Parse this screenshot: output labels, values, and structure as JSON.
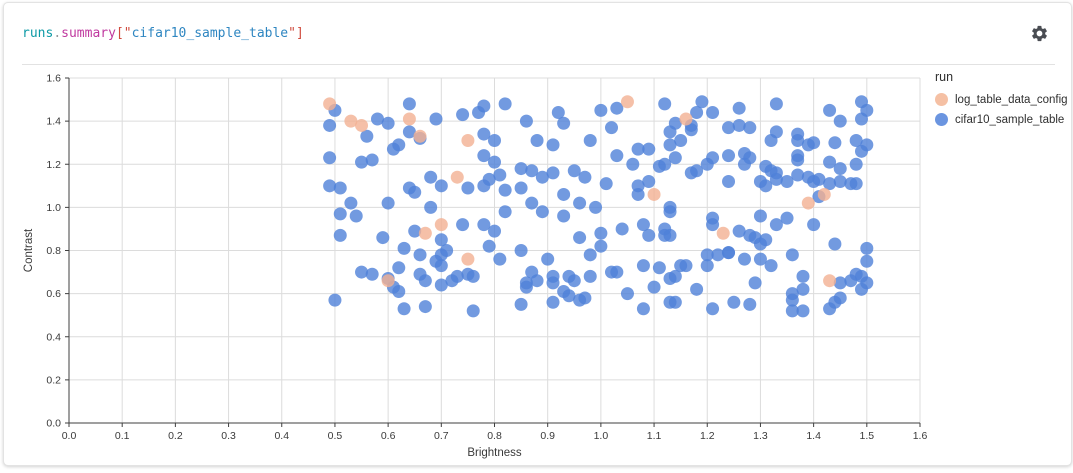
{
  "panel": {
    "header": {
      "title_full": "runs.summary[\"cifar10_sample_table\"]",
      "title_tokens": [
        {
          "text": "runs",
          "color": "#0d9aa6"
        },
        {
          "text": ".",
          "color": "#97989c"
        },
        {
          "text": "summary",
          "color": "#c0399f"
        },
        {
          "text": "[",
          "color": "#d04a3d"
        },
        {
          "text": "\"",
          "color": "#d04a3d"
        },
        {
          "text": "cifar10_sample_table",
          "color": "#2e86c1"
        },
        {
          "text": "\"",
          "color": "#d04a3d"
        },
        {
          "text": "]",
          "color": "#d04a3d"
        }
      ]
    }
  },
  "chart_data": {
    "type": "scatter",
    "title": "runs.summary[\"cifar10_sample_table\"]",
    "xlabel": "Brightness",
    "ylabel": "Contrast",
    "xlim": [
      0,
      1.6
    ],
    "ylim": [
      0,
      1.6
    ],
    "x_ticks": [
      "0.0",
      "0.1",
      "0.2",
      "0.3",
      "0.4",
      "0.5",
      "0.6",
      "0.7",
      "0.8",
      "0.9",
      "1.0",
      "1.1",
      "1.2",
      "1.3",
      "1.4",
      "1.5",
      "1.6"
    ],
    "y_ticks": [
      "0.0",
      "0.2",
      "0.4",
      "0.6",
      "0.8",
      "1.0",
      "1.2",
      "1.4",
      "1.6"
    ],
    "grid": true,
    "legend_position": "right",
    "legend_title": "run",
    "colors": {
      "grid": "#dcdcdc",
      "axis": "#3f3f3f",
      "tick_label": "#3a3a3a"
    },
    "series": [
      {
        "name": "log_table_data_config",
        "color": "#f5c0a4",
        "point_color": "#f3b092",
        "points": [
          [
            0.49,
            1.48
          ],
          [
            0.53,
            1.4
          ],
          [
            0.55,
            1.38
          ],
          [
            0.64,
            1.41
          ],
          [
            0.66,
            1.33
          ],
          [
            0.75,
            1.31
          ],
          [
            0.73,
            1.14
          ],
          [
            0.7,
            0.92
          ],
          [
            0.67,
            0.88
          ],
          [
            0.75,
            0.76
          ],
          [
            0.6,
            0.66
          ],
          [
            1.05,
            1.49
          ],
          [
            1.16,
            1.41
          ],
          [
            1.1,
            1.06
          ],
          [
            1.42,
            1.06
          ],
          [
            1.39,
            1.02
          ],
          [
            1.23,
            0.88
          ],
          [
            1.43,
            0.66
          ]
        ]
      },
      {
        "name": "cifar10_sample_table",
        "color": "#6b95e0",
        "point_color": "#4f81d8",
        "points": [
          [
            0.5,
            1.45
          ],
          [
            0.49,
            1.38
          ],
          [
            0.56,
            1.33
          ],
          [
            0.58,
            1.41
          ],
          [
            0.6,
            1.39
          ],
          [
            0.64,
            1.48
          ],
          [
            0.64,
            1.35
          ],
          [
            0.66,
            1.32
          ],
          [
            0.69,
            1.41
          ],
          [
            0.62,
            1.29
          ],
          [
            0.61,
            1.27
          ],
          [
            0.74,
            1.43
          ],
          [
            0.77,
            1.44
          ],
          [
            0.78,
            1.47
          ],
          [
            0.82,
            1.48
          ],
          [
            0.78,
            1.34
          ],
          [
            0.8,
            1.31
          ],
          [
            0.86,
            1.4
          ],
          [
            0.88,
            1.31
          ],
          [
            0.92,
            1.44
          ],
          [
            0.93,
            1.39
          ],
          [
            0.91,
            1.29
          ],
          [
            0.98,
            1.31
          ],
          [
            1.0,
            1.45
          ],
          [
            1.02,
            1.37
          ],
          [
            0.49,
            1.23
          ],
          [
            0.55,
            1.21
          ],
          [
            0.57,
            1.22
          ],
          [
            0.49,
            1.1
          ],
          [
            0.51,
            1.09
          ],
          [
            0.53,
            1.02
          ],
          [
            0.51,
            0.97
          ],
          [
            0.54,
            0.96
          ],
          [
            0.6,
            1.02
          ],
          [
            0.64,
            1.09
          ],
          [
            0.65,
            1.07
          ],
          [
            0.68,
            1.14
          ],
          [
            0.7,
            1.1
          ],
          [
            0.75,
            1.09
          ],
          [
            0.78,
            1.1
          ],
          [
            0.79,
            1.13
          ],
          [
            0.78,
            1.24
          ],
          [
            0.8,
            1.21
          ],
          [
            0.81,
            1.15
          ],
          [
            0.82,
            1.08
          ],
          [
            0.85,
            1.18
          ],
          [
            0.85,
            1.09
          ],
          [
            0.87,
            1.17
          ],
          [
            0.89,
            1.14
          ],
          [
            0.91,
            1.16
          ],
          [
            0.95,
            1.17
          ],
          [
            0.97,
            1.14
          ],
          [
            1.01,
            1.11
          ],
          [
            0.51,
            0.87
          ],
          [
            0.59,
            0.86
          ],
          [
            0.65,
            0.89
          ],
          [
            0.68,
            1.0
          ],
          [
            0.7,
            0.85
          ],
          [
            0.74,
            0.92
          ],
          [
            0.78,
            0.92
          ],
          [
            0.8,
            0.89
          ],
          [
            0.79,
            0.82
          ],
          [
            0.82,
            0.98
          ],
          [
            0.87,
            1.02
          ],
          [
            0.89,
            0.98
          ],
          [
            0.93,
            1.06
          ],
          [
            0.93,
            0.96
          ],
          [
            0.96,
            1.02
          ],
          [
            0.99,
            1.0
          ],
          [
            1.0,
            0.88
          ],
          [
            0.96,
            0.86
          ],
          [
            1.0,
            0.82
          ],
          [
            0.63,
            0.81
          ],
          [
            0.71,
            0.8
          ],
          [
            0.85,
            0.8
          ],
          [
            1.03,
            1.46
          ],
          [
            1.12,
            1.48
          ],
          [
            1.19,
            1.49
          ],
          [
            1.18,
            1.44
          ],
          [
            1.21,
            1.44
          ],
          [
            1.26,
            1.46
          ],
          [
            1.33,
            1.48
          ],
          [
            1.43,
            1.45
          ],
          [
            1.49,
            1.49
          ],
          [
            1.5,
            1.45
          ],
          [
            1.49,
            1.41
          ],
          [
            1.45,
            1.4
          ],
          [
            1.17,
            1.38
          ],
          [
            1.17,
            1.36
          ],
          [
            1.14,
            1.39
          ],
          [
            1.13,
            1.35
          ],
          [
            1.24,
            1.37
          ],
          [
            1.26,
            1.38
          ],
          [
            1.28,
            1.37
          ],
          [
            1.13,
            1.29
          ],
          [
            1.15,
            1.31
          ],
          [
            1.33,
            1.35
          ],
          [
            1.37,
            1.34
          ],
          [
            1.32,
            1.31
          ],
          [
            1.37,
            1.31
          ],
          [
            1.39,
            1.29
          ],
          [
            1.4,
            1.3
          ],
          [
            1.44,
            1.3
          ],
          [
            1.48,
            1.31
          ],
          [
            1.5,
            1.29
          ],
          [
            1.07,
            1.27
          ],
          [
            1.09,
            1.27
          ],
          [
            1.03,
            1.24
          ],
          [
            1.06,
            1.2
          ],
          [
            1.11,
            1.19
          ],
          [
            1.12,
            1.2
          ],
          [
            1.14,
            1.23
          ],
          [
            1.17,
            1.16
          ],
          [
            1.18,
            1.17
          ],
          [
            1.2,
            1.2
          ],
          [
            1.21,
            1.23
          ],
          [
            1.24,
            1.24
          ],
          [
            1.27,
            1.25
          ],
          [
            1.28,
            1.23
          ],
          [
            1.27,
            1.2
          ],
          [
            1.31,
            1.19
          ],
          [
            1.32,
            1.17
          ],
          [
            1.33,
            1.16
          ],
          [
            1.37,
            1.15
          ],
          [
            1.37,
            1.24
          ],
          [
            1.37,
            1.22
          ],
          [
            1.43,
            1.21
          ],
          [
            1.45,
            1.18
          ],
          [
            1.48,
            1.2
          ],
          [
            1.49,
            1.26
          ],
          [
            1.41,
            1.13
          ],
          [
            1.43,
            1.11
          ],
          [
            1.45,
            1.12
          ],
          [
            1.47,
            1.11
          ],
          [
            1.48,
            1.11
          ],
          [
            1.09,
            1.12
          ],
          [
            1.07,
            1.1
          ],
          [
            1.07,
            1.06
          ],
          [
            1.13,
            1.0
          ],
          [
            1.13,
            0.98
          ],
          [
            1.21,
            0.95
          ],
          [
            1.24,
            1.12
          ],
          [
            1.3,
            1.12
          ],
          [
            1.31,
            1.1
          ],
          [
            1.33,
            1.13
          ],
          [
            1.35,
            1.12
          ],
          [
            1.39,
            1.14
          ],
          [
            1.4,
            1.12
          ],
          [
            1.41,
            1.05
          ],
          [
            1.3,
            0.96
          ],
          [
            1.33,
            0.92
          ],
          [
            1.35,
            0.95
          ],
          [
            1.4,
            0.92
          ],
          [
            1.04,
            0.9
          ],
          [
            1.08,
            0.92
          ],
          [
            1.09,
            0.87
          ],
          [
            1.12,
            0.9
          ],
          [
            1.12,
            0.87
          ],
          [
            1.13,
            0.87
          ],
          [
            1.21,
            0.92
          ],
          [
            1.26,
            0.89
          ],
          [
            1.28,
            0.87
          ],
          [
            1.29,
            0.86
          ],
          [
            1.3,
            0.83
          ],
          [
            1.31,
            0.85
          ],
          [
            1.44,
            0.83
          ],
          [
            1.5,
            0.81
          ],
          [
            1.24,
            0.79
          ],
          [
            0.5,
            0.57
          ],
          [
            0.55,
            0.7
          ],
          [
            0.57,
            0.69
          ],
          [
            0.6,
            0.67
          ],
          [
            0.61,
            0.63
          ],
          [
            0.62,
            0.61
          ],
          [
            0.62,
            0.72
          ],
          [
            0.63,
            0.53
          ],
          [
            0.66,
            0.69
          ],
          [
            0.67,
            0.66
          ],
          [
            0.67,
            0.54
          ],
          [
            0.66,
            0.78
          ],
          [
            0.69,
            0.75
          ],
          [
            0.7,
            0.78
          ],
          [
            0.7,
            0.73
          ],
          [
            0.7,
            0.64
          ],
          [
            0.72,
            0.66
          ],
          [
            0.73,
            0.68
          ],
          [
            0.75,
            0.69
          ],
          [
            0.76,
            0.68
          ],
          [
            0.76,
            0.52
          ],
          [
            0.81,
            0.76
          ],
          [
            0.85,
            0.55
          ],
          [
            0.86,
            0.63
          ],
          [
            0.86,
            0.65
          ],
          [
            0.87,
            0.7
          ],
          [
            0.88,
            0.66
          ],
          [
            0.9,
            0.76
          ],
          [
            0.91,
            0.68
          ],
          [
            0.91,
            0.65
          ],
          [
            0.91,
            0.56
          ],
          [
            0.93,
            0.61
          ],
          [
            0.94,
            0.59
          ],
          [
            0.94,
            0.68
          ],
          [
            0.95,
            0.66
          ],
          [
            0.96,
            0.57
          ],
          [
            0.97,
            0.58
          ],
          [
            0.98,
            0.68
          ],
          [
            0.98,
            0.78
          ],
          [
            1.02,
            0.7
          ],
          [
            1.03,
            0.7
          ],
          [
            1.05,
            0.6
          ],
          [
            1.08,
            0.73
          ],
          [
            1.08,
            0.53
          ],
          [
            1.1,
            0.63
          ],
          [
            1.11,
            0.72
          ],
          [
            1.13,
            0.56
          ],
          [
            1.14,
            0.56
          ],
          [
            1.13,
            0.67
          ],
          [
            1.14,
            0.68
          ],
          [
            1.15,
            0.73
          ],
          [
            1.16,
            0.73
          ],
          [
            1.18,
            0.62
          ],
          [
            1.2,
            0.73
          ],
          [
            1.2,
            0.78
          ],
          [
            1.21,
            0.53
          ],
          [
            1.22,
            0.78
          ],
          [
            1.24,
            0.79
          ],
          [
            1.25,
            0.56
          ],
          [
            1.27,
            0.76
          ],
          [
            1.28,
            0.55
          ],
          [
            1.29,
            0.65
          ],
          [
            1.3,
            0.76
          ],
          [
            1.32,
            0.73
          ],
          [
            1.36,
            0.78
          ],
          [
            1.36,
            0.6
          ],
          [
            1.36,
            0.57
          ],
          [
            1.36,
            0.52
          ],
          [
            1.38,
            0.52
          ],
          [
            1.38,
            0.68
          ],
          [
            1.38,
            0.62
          ],
          [
            1.43,
            0.53
          ],
          [
            1.44,
            0.56
          ],
          [
            1.45,
            0.58
          ],
          [
            1.45,
            0.65
          ],
          [
            1.47,
            0.66
          ],
          [
            1.48,
            0.69
          ],
          [
            1.49,
            0.68
          ],
          [
            1.5,
            0.65
          ],
          [
            1.49,
            0.62
          ],
          [
            1.5,
            0.75
          ]
        ]
      }
    ]
  }
}
